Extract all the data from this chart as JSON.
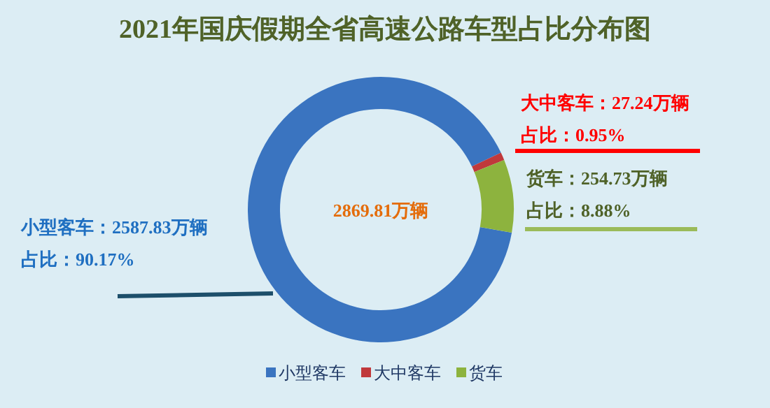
{
  "chart_data": {
    "type": "donut",
    "title": "2021年国庆假期全省高速公路车型占比分布图",
    "categories": [
      "小型客车",
      "大中客车",
      "货车"
    ],
    "values": [
      2587.83,
      27.24,
      254.73
    ],
    "colors": [
      "#3a74c0",
      "#c0393b",
      "#8db33e"
    ],
    "value_labels": [
      "小型客车：2587.83万辆",
      "大中客车：27.24万辆",
      "货车：254.73万辆"
    ],
    "annotations": [
      "2869.81万辆",
      "占比：90.17%",
      "占比：0.95%",
      "占比：8.88%"
    ],
    "legend": "bottom"
  }
}
